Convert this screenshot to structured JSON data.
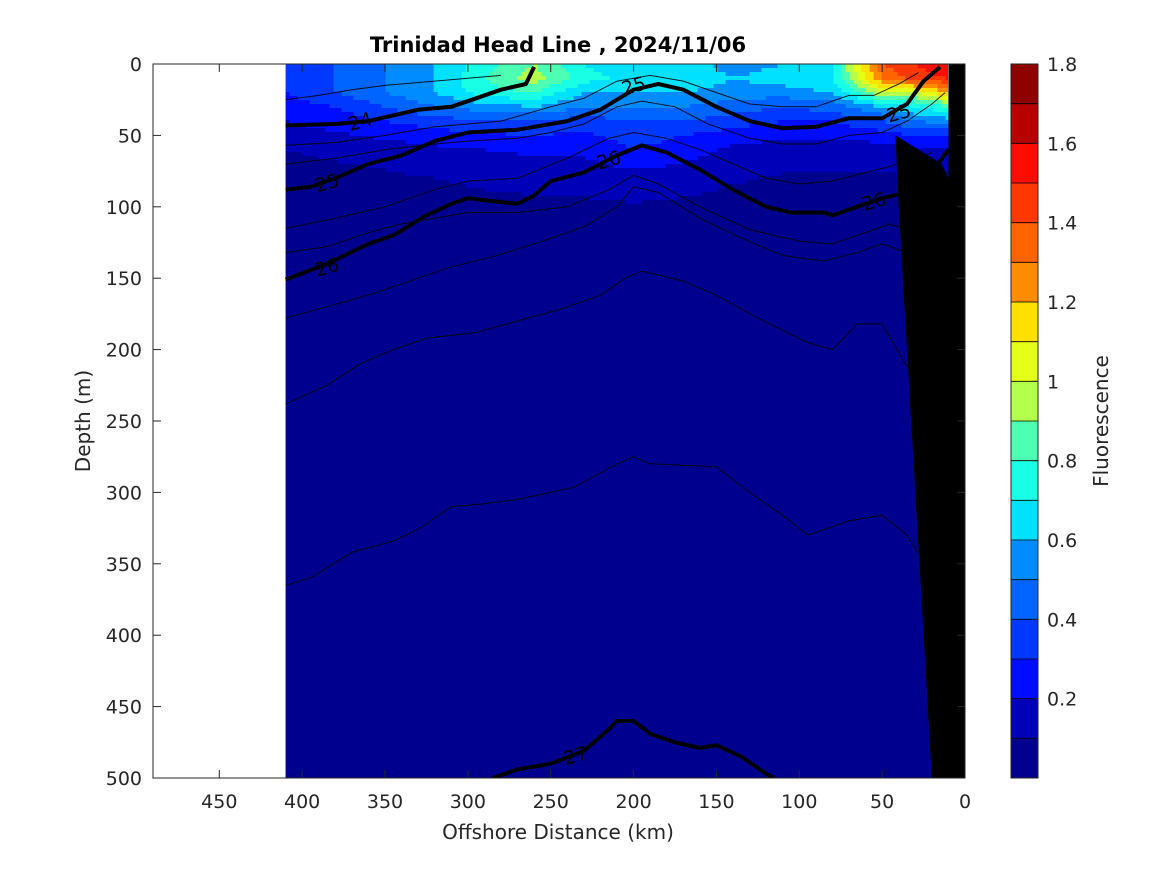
{
  "chart_data": {
    "type": "heatmap",
    "title": "Trinidad Head Line , 2024/11/06",
    "xlabel": "Offshore Distance (km)",
    "ylabel": "Depth (m)",
    "xlim": [
      490,
      0
    ],
    "ylim": [
      0,
      500
    ],
    "x_reversed": true,
    "y_reversed": true,
    "x_ticks": [
      450,
      400,
      350,
      300,
      250,
      200,
      150,
      100,
      50,
      0
    ],
    "y_ticks": [
      0,
      50,
      100,
      150,
      200,
      250,
      300,
      350,
      400,
      450,
      500
    ],
    "data_extent_km": [
      410,
      10
    ],
    "colorbar": {
      "label": "Fluorescence",
      "range": [
        0,
        1.8
      ],
      "ticks": [
        0.2,
        0.4,
        0.6,
        0.8,
        1,
        1.2,
        1.4,
        1.6,
        1.8
      ],
      "levels": 18,
      "colors": [
        "#00008f",
        "#0000b8",
        "#0000e0",
        "#000cff",
        "#0038ff",
        "#0064ff",
        "#008cff",
        "#00b8ff",
        "#00e0ff",
        "#18ffe6",
        "#4cffb3",
        "#80ff80",
        "#b3ff4c",
        "#e6ff18",
        "#ffe000",
        "#ffb800",
        "#ff8c00",
        "#ff6400",
        "#ff3800",
        "#ff0c00",
        "#e00000",
        "#b80000",
        "#8f0000"
      ]
    },
    "fluorescence_field": {
      "x_km": [
        410,
        380,
        350,
        320,
        290,
        260,
        230,
        200,
        170,
        140,
        110,
        80,
        50,
        30,
        10
      ],
      "depth_m": [
        0,
        10,
        20,
        30,
        40,
        50,
        60,
        80,
        100,
        150,
        200,
        300,
        400,
        500
      ],
      "values": [
        [
          0.35,
          0.4,
          0.5,
          0.6,
          0.75,
          0.9,
          0.7,
          0.6,
          0.65,
          0.55,
          0.6,
          0.7,
          1.4,
          1.5,
          1.6
        ],
        [
          0.35,
          0.4,
          0.5,
          0.6,
          0.8,
          0.95,
          0.75,
          0.65,
          0.7,
          0.6,
          0.65,
          0.7,
          1.3,
          1.45,
          1.5
        ],
        [
          0.3,
          0.4,
          0.5,
          0.6,
          0.75,
          0.8,
          0.6,
          0.6,
          0.6,
          0.55,
          0.55,
          0.6,
          1.0,
          1.0,
          1.2
        ],
        [
          0.25,
          0.3,
          0.4,
          0.5,
          0.55,
          0.6,
          0.5,
          0.5,
          0.5,
          0.45,
          0.4,
          0.45,
          0.6,
          0.7,
          0.8
        ],
        [
          0.2,
          0.25,
          0.3,
          0.35,
          0.4,
          0.4,
          0.35,
          0.4,
          0.4,
          0.35,
          0.3,
          0.3,
          0.4,
          0.5,
          0.55
        ],
        [
          0.15,
          0.18,
          0.22,
          0.25,
          0.28,
          0.3,
          0.28,
          0.35,
          0.3,
          0.25,
          0.22,
          0.22,
          0.25,
          0.3,
          0.3
        ],
        [
          0.1,
          0.12,
          0.15,
          0.18,
          0.2,
          0.22,
          0.22,
          0.3,
          0.25,
          0.18,
          0.15,
          0.15,
          0.15,
          0.18,
          0.18
        ],
        [
          0.06,
          0.07,
          0.08,
          0.1,
          0.12,
          0.13,
          0.14,
          0.16,
          0.14,
          0.11,
          0.09,
          0.08,
          0.08,
          0.08,
          0.08
        ],
        [
          0.05,
          0.05,
          0.05,
          0.06,
          0.07,
          0.08,
          0.08,
          0.09,
          0.08,
          0.07,
          0.06,
          0.06,
          0.05,
          0.05,
          0.05
        ],
        [
          0.04,
          0.04,
          0.04,
          0.04,
          0.04,
          0.05,
          0.05,
          0.05,
          0.05,
          0.05,
          0.04,
          0.04,
          0.04,
          0.04,
          0.04
        ],
        [
          0.03,
          0.03,
          0.03,
          0.03,
          0.03,
          0.03,
          0.03,
          0.04,
          0.04,
          0.03,
          0.03,
          0.03,
          0.03,
          0.03,
          0.03
        ],
        [
          0.03,
          0.03,
          0.03,
          0.03,
          0.03,
          0.03,
          0.03,
          0.03,
          0.03,
          0.03,
          0.03,
          0.03,
          0.03,
          0.03,
          0.03
        ],
        [
          0.02,
          0.02,
          0.02,
          0.02,
          0.02,
          0.02,
          0.02,
          0.02,
          0.02,
          0.02,
          0.02,
          0.02,
          0.02,
          0.02,
          0.02
        ],
        [
          0.02,
          0.02,
          0.02,
          0.02,
          0.02,
          0.02,
          0.02,
          0.02,
          0.02,
          0.02,
          0.02,
          0.02,
          0.02,
          0.02,
          0.02
        ]
      ]
    },
    "density_contours_labeled": [
      {
        "label": "24",
        "points": [
          [
            410,
            43
          ],
          [
            380,
            42
          ],
          [
            360,
            40
          ],
          [
            330,
            32
          ],
          [
            310,
            30
          ],
          [
            295,
            24
          ],
          [
            280,
            18
          ],
          [
            265,
            14
          ],
          [
            260,
            2
          ]
        ]
      },
      {
        "label": "25",
        "points": [
          [
            410,
            88
          ],
          [
            395,
            86
          ],
          [
            380,
            80
          ],
          [
            360,
            70
          ],
          [
            340,
            64
          ],
          [
            320,
            54
          ],
          [
            300,
            48
          ],
          [
            270,
            46
          ],
          [
            240,
            40
          ],
          [
            220,
            32
          ],
          [
            200,
            18
          ],
          [
            185,
            14
          ],
          [
            170,
            18
          ],
          [
            150,
            30
          ],
          [
            130,
            40
          ],
          [
            110,
            45
          ],
          [
            90,
            44
          ],
          [
            70,
            38
          ],
          [
            50,
            38
          ],
          [
            35,
            28
          ],
          [
            25,
            12
          ],
          [
            15,
            2
          ]
        ]
      },
      {
        "label": "26",
        "points": [
          [
            410,
            151
          ],
          [
            385,
            140
          ],
          [
            360,
            126
          ],
          [
            345,
            120
          ],
          [
            325,
            106
          ],
          [
            310,
            98
          ],
          [
            300,
            94
          ],
          [
            285,
            96
          ],
          [
            270,
            98
          ],
          [
            260,
            92
          ],
          [
            250,
            82
          ],
          [
            230,
            76
          ],
          [
            210,
            64
          ],
          [
            195,
            57
          ],
          [
            180,
            62
          ],
          [
            160,
            74
          ],
          [
            140,
            88
          ],
          [
            120,
            100
          ],
          [
            105,
            104
          ],
          [
            85,
            104
          ],
          [
            80,
            106
          ],
          [
            65,
            100
          ],
          [
            50,
            94
          ],
          [
            35,
            90
          ],
          [
            25,
            84
          ],
          [
            15,
            68
          ],
          [
            10,
            60
          ]
        ]
      },
      {
        "label": "27",
        "points": [
          [
            285,
            500
          ],
          [
            270,
            494
          ],
          [
            250,
            490
          ],
          [
            230,
            481
          ],
          [
            215,
            466
          ],
          [
            210,
            460
          ],
          [
            200,
            460
          ],
          [
            190,
            469
          ],
          [
            175,
            475
          ],
          [
            160,
            479
          ],
          [
            150,
            477
          ],
          [
            135,
            485
          ],
          [
            120,
            497
          ],
          [
            115,
            500
          ]
        ]
      }
    ],
    "density_contours_thin": [
      {
        "points": [
          [
            410,
            25
          ],
          [
            390,
            22
          ],
          [
            370,
            18
          ],
          [
            350,
            15
          ],
          [
            320,
            12
          ],
          [
            300,
            10
          ],
          [
            280,
            8
          ]
        ]
      },
      {
        "points": [
          [
            410,
            57
          ],
          [
            380,
            55
          ],
          [
            350,
            50
          ],
          [
            320,
            44
          ],
          [
            300,
            42
          ],
          [
            280,
            40
          ],
          [
            250,
            30
          ],
          [
            230,
            24
          ],
          [
            210,
            12
          ],
          [
            190,
            8
          ],
          [
            170,
            12
          ],
          [
            150,
            20
          ],
          [
            130,
            28
          ],
          [
            110,
            30
          ],
          [
            90,
            30
          ],
          [
            70,
            22
          ],
          [
            55,
            22
          ],
          [
            40,
            14
          ],
          [
            28,
            6
          ]
        ]
      },
      {
        "points": [
          [
            410,
            70
          ],
          [
            380,
            66
          ],
          [
            350,
            60
          ],
          [
            320,
            56
          ],
          [
            300,
            54
          ],
          [
            270,
            52
          ],
          [
            250,
            48
          ],
          [
            230,
            42
          ],
          [
            210,
            30
          ],
          [
            195,
            26
          ],
          [
            175,
            30
          ],
          [
            155,
            42
          ],
          [
            130,
            52
          ],
          [
            110,
            56
          ],
          [
            90,
            56
          ],
          [
            70,
            50
          ],
          [
            50,
            48
          ],
          [
            35,
            40
          ],
          [
            20,
            28
          ],
          [
            12,
            20
          ]
        ]
      },
      {
        "points": [
          [
            410,
            115
          ],
          [
            380,
            108
          ],
          [
            350,
            100
          ],
          [
            320,
            88
          ],
          [
            300,
            82
          ],
          [
            270,
            80
          ],
          [
            240,
            66
          ],
          [
            215,
            52
          ],
          [
            200,
            48
          ],
          [
            180,
            52
          ],
          [
            160,
            60
          ],
          [
            140,
            70
          ],
          [
            120,
            80
          ],
          [
            100,
            84
          ],
          [
            80,
            82
          ],
          [
            60,
            76
          ],
          [
            40,
            70
          ],
          [
            20,
            62
          ]
        ]
      },
      {
        "points": [
          [
            410,
            132
          ],
          [
            385,
            128
          ],
          [
            360,
            118
          ],
          [
            340,
            112
          ],
          [
            320,
            108
          ],
          [
            300,
            104
          ],
          [
            270,
            104
          ],
          [
            240,
            100
          ],
          [
            215,
            88
          ],
          [
            200,
            78
          ],
          [
            185,
            84
          ],
          [
            160,
            100
          ],
          [
            130,
            116
          ],
          [
            100,
            124
          ],
          [
            80,
            126
          ],
          [
            60,
            118
          ],
          [
            45,
            112
          ],
          [
            30,
            118
          ],
          [
            15,
            120
          ]
        ]
      },
      {
        "points": [
          [
            410,
            178
          ],
          [
            385,
            170
          ],
          [
            355,
            160
          ],
          [
            330,
            150
          ],
          [
            310,
            142
          ],
          [
            285,
            135
          ],
          [
            255,
            124
          ],
          [
            230,
            114
          ],
          [
            210,
            100
          ],
          [
            200,
            86
          ],
          [
            185,
            90
          ],
          [
            160,
            108
          ],
          [
            135,
            122
          ],
          [
            110,
            134
          ],
          [
            85,
            138
          ],
          [
            65,
            132
          ],
          [
            50,
            126
          ],
          [
            35,
            132
          ],
          [
            20,
            140
          ],
          [
            15,
            145
          ]
        ]
      },
      {
        "points": [
          [
            410,
            238
          ],
          [
            385,
            225
          ],
          [
            365,
            210
          ],
          [
            345,
            200
          ],
          [
            325,
            192
          ],
          [
            295,
            188
          ],
          [
            270,
            180
          ],
          [
            245,
            172
          ],
          [
            220,
            162
          ],
          [
            205,
            150
          ],
          [
            195,
            145
          ],
          [
            170,
            152
          ],
          [
            150,
            162
          ],
          [
            125,
            178
          ],
          [
            95,
            195
          ],
          [
            80,
            200
          ],
          [
            65,
            182
          ],
          [
            50,
            182
          ],
          [
            35,
            212
          ],
          [
            20,
            218
          ],
          [
            15,
            220
          ]
        ]
      },
      {
        "points": [
          [
            410,
            365
          ],
          [
            395,
            360
          ],
          [
            370,
            342
          ],
          [
            345,
            334
          ],
          [
            330,
            326
          ],
          [
            310,
            310
          ],
          [
            290,
            308
          ],
          [
            270,
            305
          ],
          [
            250,
            300
          ],
          [
            235,
            296
          ],
          [
            210,
            280
          ],
          [
            200,
            275
          ],
          [
            190,
            280
          ],
          [
            150,
            282
          ],
          [
            130,
            300
          ],
          [
            110,
            316
          ],
          [
            95,
            330
          ],
          [
            85,
            326
          ],
          [
            70,
            320
          ],
          [
            50,
            316
          ],
          [
            35,
            330
          ],
          [
            20,
            358
          ],
          [
            15,
            360
          ]
        ]
      }
    ],
    "bathymetry_polygon": [
      [
        10,
        0
      ],
      [
        0,
        0
      ],
      [
        0,
        500
      ],
      [
        20,
        500
      ],
      [
        25,
        400
      ],
      [
        30,
        300
      ],
      [
        35,
        200
      ],
      [
        40,
        100
      ],
      [
        42,
        50
      ],
      [
        14,
        70
      ],
      [
        10,
        80
      ]
    ]
  }
}
